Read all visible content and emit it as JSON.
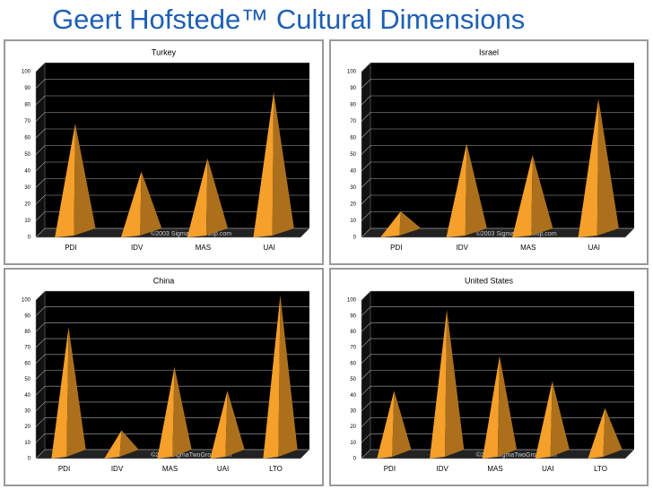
{
  "title": "Geert Hofstede™ Cultural Dimensions",
  "chart_data": [
    {
      "type": "pyramid",
      "title": "Turkey",
      "watermark": "©2003 SigmaTwoGroup.com",
      "categories": [
        "PDI",
        "IDV",
        "MAS",
        "UAI"
      ],
      "values": [
        66,
        37,
        45,
        85
      ],
      "color": "#f5a02a",
      "ylim": [
        0,
        100
      ],
      "yticks": [
        0,
        10,
        20,
        30,
        40,
        50,
        60,
        70,
        80,
        90,
        100
      ],
      "grid": true
    },
    {
      "type": "pyramid",
      "title": "Israel",
      "watermark": "©2003 SigmaTwoGroup.com",
      "categories": [
        "PDI",
        "IDV",
        "MAS",
        "UAI"
      ],
      "values": [
        13,
        54,
        47,
        81
      ],
      "color": "#f5a02a",
      "ylim": [
        0,
        100
      ],
      "yticks": [
        0,
        10,
        20,
        30,
        40,
        50,
        60,
        70,
        80,
        90,
        100
      ],
      "grid": true
    },
    {
      "type": "pyramid",
      "title": "China",
      "watermark": "©2003 SigmaTwoGroup.com",
      "categories": [
        "PDI",
        "IDV",
        "MAS",
        "UAI",
        "LTO"
      ],
      "values": [
        80,
        15,
        55,
        40,
        100
      ],
      "color": "#f5a02a",
      "ylim": [
        0,
        100
      ],
      "yticks": [
        0,
        10,
        20,
        30,
        40,
        50,
        60,
        70,
        80,
        90,
        100
      ],
      "grid": true
    },
    {
      "type": "pyramid",
      "title": "United States",
      "watermark": "©2003 SigmaTwoGroup.com",
      "categories": [
        "PDI",
        "IDV",
        "MAS",
        "UAI",
        "LTO"
      ],
      "values": [
        40,
        91,
        62,
        46,
        29
      ],
      "color": "#f5a02a",
      "ylim": [
        0,
        100
      ],
      "yticks": [
        0,
        10,
        20,
        30,
        40,
        50,
        60,
        70,
        80,
        90,
        100
      ],
      "grid": true
    }
  ]
}
